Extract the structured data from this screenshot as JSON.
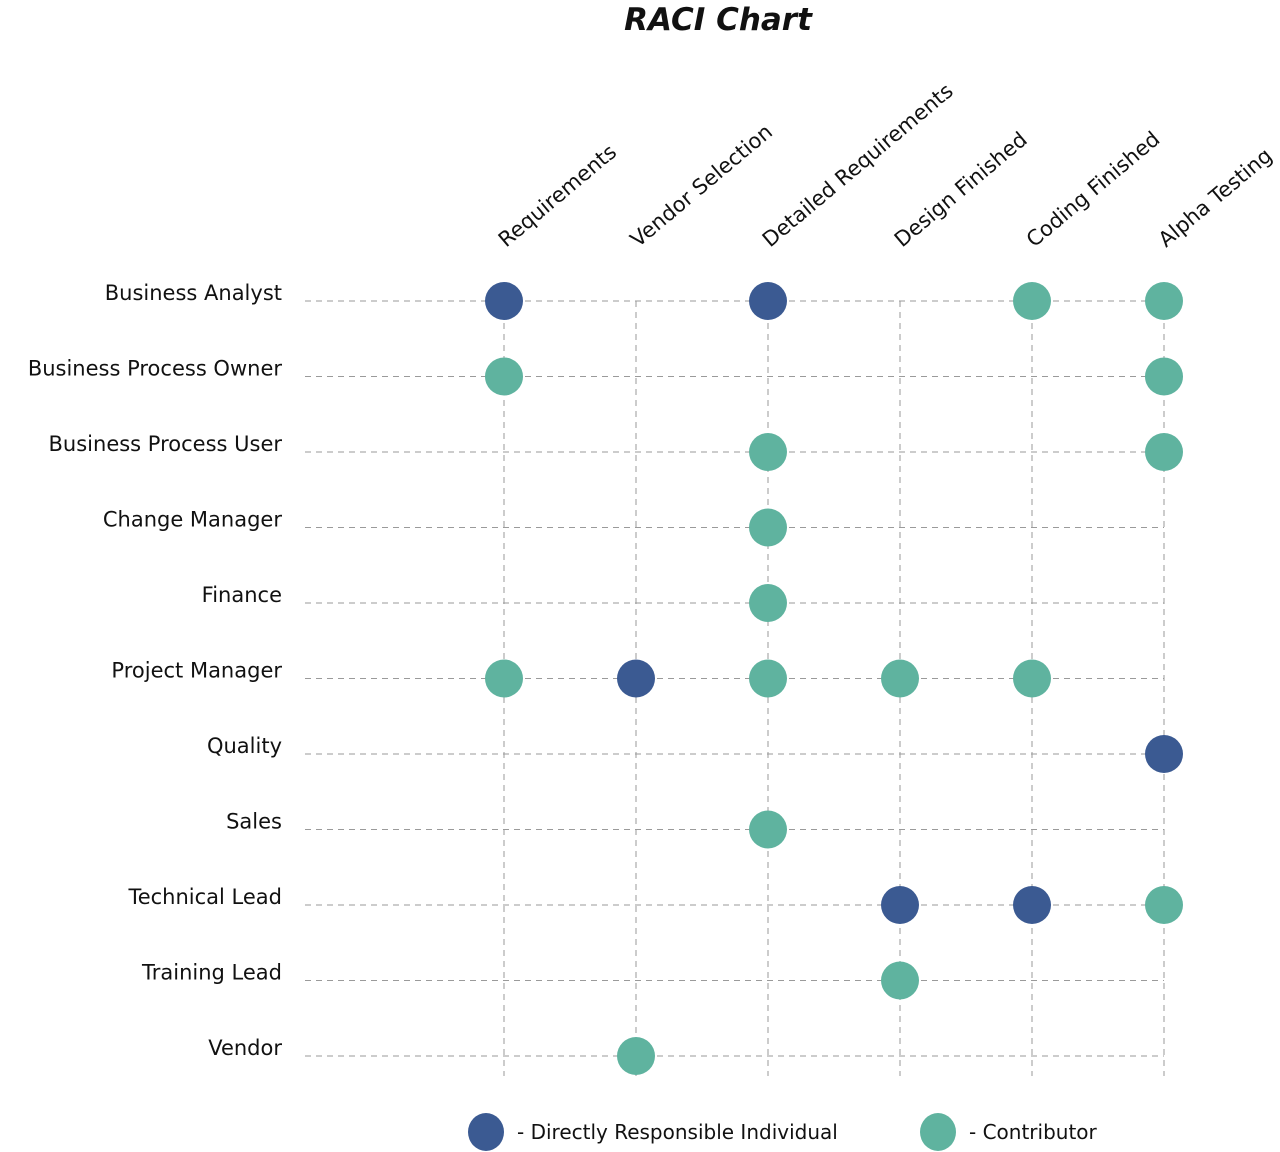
{
  "chart_data": {
    "type": "scatter",
    "title": "RACI Chart",
    "columns": [
      "Requirements",
      "Vendor Selection",
      "Detailed Requirements",
      "Design Finished",
      "Coding Finished",
      "Alpha Testing"
    ],
    "rows": [
      "Business Analyst",
      "Business Process Owner",
      "Business Process User",
      "Change Manager",
      "Finance",
      "Project Manager",
      "Quality",
      "Sales",
      "Technical Lead",
      "Training Lead",
      "Vendor"
    ],
    "grid": true,
    "legend_position": "bottom",
    "legend": [
      {
        "key": "D",
        "label": "- Directly Responsible Individual",
        "color": "#3b5a92"
      },
      {
        "key": "C",
        "label": "- Contributor",
        "color": "#5fb39f"
      }
    ],
    "cells": [
      {
        "row": "Business Analyst",
        "column": "Requirements",
        "role": "D"
      },
      {
        "row": "Business Analyst",
        "column": "Detailed Requirements",
        "role": "D"
      },
      {
        "row": "Business Analyst",
        "column": "Coding Finished",
        "role": "C"
      },
      {
        "row": "Business Analyst",
        "column": "Alpha Testing",
        "role": "C"
      },
      {
        "row": "Business Process Owner",
        "column": "Requirements",
        "role": "C"
      },
      {
        "row": "Business Process Owner",
        "column": "Alpha Testing",
        "role": "C"
      },
      {
        "row": "Business Process User",
        "column": "Detailed Requirements",
        "role": "C"
      },
      {
        "row": "Business Process User",
        "column": "Alpha Testing",
        "role": "C"
      },
      {
        "row": "Change Manager",
        "column": "Detailed Requirements",
        "role": "C"
      },
      {
        "row": "Finance",
        "column": "Detailed Requirements",
        "role": "C"
      },
      {
        "row": "Project Manager",
        "column": "Requirements",
        "role": "C"
      },
      {
        "row": "Project Manager",
        "column": "Vendor Selection",
        "role": "D"
      },
      {
        "row": "Project Manager",
        "column": "Detailed Requirements",
        "role": "C"
      },
      {
        "row": "Project Manager",
        "column": "Design Finished",
        "role": "C"
      },
      {
        "row": "Project Manager",
        "column": "Coding Finished",
        "role": "C"
      },
      {
        "row": "Quality",
        "column": "Alpha Testing",
        "role": "D"
      },
      {
        "row": "Sales",
        "column": "Detailed Requirements",
        "role": "C"
      },
      {
        "row": "Technical Lead",
        "column": "Design Finished",
        "role": "D"
      },
      {
        "row": "Technical Lead",
        "column": "Coding Finished",
        "role": "D"
      },
      {
        "row": "Technical Lead",
        "column": "Alpha Testing",
        "role": "C"
      },
      {
        "row": "Training Lead",
        "column": "Design Finished",
        "role": "C"
      },
      {
        "row": "Vendor",
        "column": "Vendor Selection",
        "role": "C"
      }
    ]
  }
}
